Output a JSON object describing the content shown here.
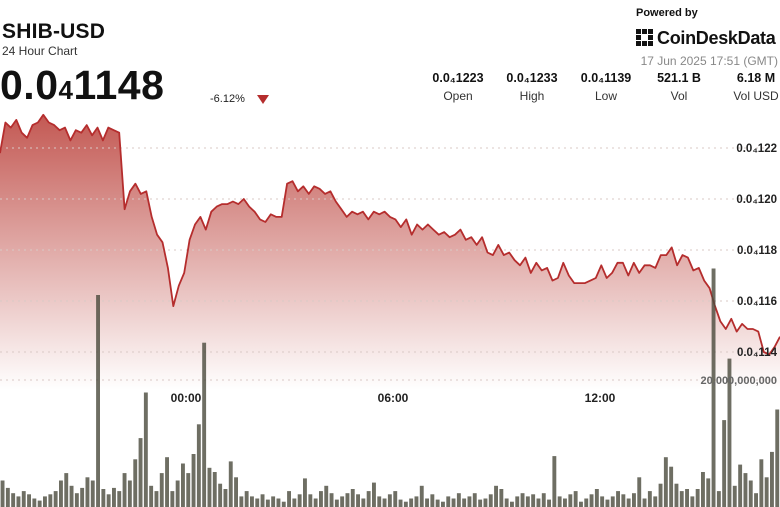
{
  "header": {
    "pair": "SHIB-USD",
    "period": "24 Hour Chart",
    "price_main": "0.0",
    "price_sub": "4",
    "price_tail": "1148",
    "change": "-6.12%",
    "change_direction": "down"
  },
  "branding": {
    "powered_by": "Powered by",
    "name": "CoinDeskData",
    "timestamp": "17 Jun 2025 17:51 (GMT)"
  },
  "stats": [
    {
      "value": "0.0₄1223",
      "label": "Open"
    },
    {
      "value": "0.0₄1233",
      "label": "High"
    },
    {
      "value": "0.0₄1139",
      "label": "Low"
    },
    {
      "value": "521.1 B",
      "label": "Vol"
    },
    {
      "value": "6.18 M",
      "label": "Vol USD"
    }
  ],
  "colors": {
    "line": "#b52d2d",
    "area_top": "#c0504a",
    "volume_bar": "#4a4a3c",
    "down": "#b52d2d"
  },
  "chart_data": {
    "type": "area",
    "y_tick_labels": [
      "0.0₄122",
      "0.0₄120",
      "0.0₄118",
      "0.0₄116",
      "0.0₄114"
    ],
    "y_tick_values": [
      1.22e-05,
      1.2e-05,
      1.18e-05,
      1.16e-05,
      1.14e-05
    ],
    "x_tick_labels": [
      "00:00",
      "06:00",
      "12:00"
    ],
    "volume_tick_label": "20,000,000,000",
    "grid": true,
    "series": [
      {
        "values": [
          1.218e-05,
          1.23e-05,
          1.228e-05,
          1.231e-05,
          1.226e-05,
          1.224e-05,
          1.229e-05,
          1.23e-05,
          1.233e-05,
          1.23e-05,
          1.229e-05,
          1.227e-05,
          1.228e-05,
          1.223e-05,
          1.227e-05,
          1.226e-05,
          1.229e-05,
          1.225e-05,
          1.228e-05,
          1.223e-05,
          1.228e-05,
          1.227e-05,
          1.226e-05,
          1.196e-05,
          1.203e-05,
          1.206e-05,
          1.202e-05,
          1.203e-05,
          1.193e-05,
          1.186e-05,
          1.183e-05,
          1.173e-05,
          1.158e-05,
          1.166e-05,
          1.171e-05,
          1.184e-05,
          1.19e-05,
          1.193e-05,
          1.188e-05,
          1.195e-05,
          1.197e-05,
          1.198e-05,
          1.198e-05,
          1.199e-05,
          1.198e-05,
          1.2e-05,
          1.197e-05,
          1.195e-05,
          1.192e-05,
          1.191e-05,
          1.194e-05,
          1.193e-05,
          1.193e-05,
          1.206e-05,
          1.207e-05,
          1.203e-05,
          1.205e-05,
          1.202e-05,
          1.205e-05,
          1.204e-05,
          1.202e-05,
          1.203e-05,
          1.199e-05,
          1.196e-05,
          1.193e-05,
          1.195e-05,
          1.194e-05,
          1.195e-05,
          1.192e-05,
          1.195e-05,
          1.194e-05,
          1.195e-05,
          1.193e-05,
          1.192e-05,
          1.189e-05,
          1.192e-05,
          1.186e-05,
          1.19e-05,
          1.188e-05,
          1.19e-05,
          1.188e-05,
          1.186e-05,
          1.187e-05,
          1.185e-05,
          1.186e-05,
          1.188e-05,
          1.184e-05,
          1.185e-05,
          1.182e-05,
          1.185e-05,
          1.179e-05,
          1.178e-05,
          1.182e-05,
          1.178e-05,
          1.179e-05,
          1.176e-05,
          1.174e-05,
          1.177e-05,
          1.171e-05,
          1.175e-05,
          1.172e-05,
          1.173e-05,
          1.168e-05,
          1.169e-05,
          1.175e-05,
          1.17e-05,
          1.167e-05,
          1.167e-05,
          1.167e-05,
          1.168e-05,
          1.169e-05,
          1.174e-05,
          1.169e-05,
          1.171e-05,
          1.175e-05,
          1.175e-05,
          1.17e-05,
          1.175e-05,
          1.171e-05,
          1.174e-05,
          1.174e-05,
          1.173e-05,
          1.178e-05,
          1.178e-05,
          1.181e-05,
          1.174e-05,
          1.178e-05,
          1.177e-05,
          1.172e-05,
          1.173e-05,
          1.168e-05,
          1.165e-05,
          1.158e-05,
          1.152e-05,
          1.149e-05,
          1.153e-05,
          1.148e-05,
          1.151e-05,
          1.149e-05,
          1.149e-05,
          1.148e-05,
          1.14e-05,
          1.139e-05,
          1.142e-05,
          1.146e-05
        ]
      }
    ],
    "volume": {
      "values": [
        2.5,
        1.8,
        1.3,
        1.0,
        1.5,
        1.2,
        0.8,
        0.6,
        1.0,
        1.2,
        1.5,
        2.5,
        3.2,
        2.0,
        1.3,
        1.8,
        2.8,
        2.5,
        20.0,
        1.7,
        1.2,
        1.8,
        1.5,
        3.2,
        2.5,
        4.5,
        6.5,
        10.8,
        2.0,
        1.5,
        3.2,
        4.7,
        1.5,
        2.5,
        4.1,
        3.2,
        5.0,
        7.8,
        15.5,
        3.7,
        3.3,
        2.2,
        1.7,
        4.3,
        2.8,
        1.0,
        1.5,
        1.0,
        0.8,
        1.2,
        0.7,
        1.0,
        0.8,
        0.5,
        1.5,
        0.8,
        1.2,
        2.7,
        1.2,
        0.8,
        1.5,
        2.0,
        1.3,
        0.7,
        1.0,
        1.3,
        1.7,
        1.2,
        0.8,
        1.5,
        2.3,
        1.0,
        0.8,
        1.2,
        1.5,
        0.7,
        0.5,
        0.8,
        1.0,
        2.0,
        0.8,
        1.2,
        0.7,
        0.5,
        1.0,
        0.8,
        1.3,
        0.8,
        1.0,
        1.3,
        0.7,
        0.8,
        1.2,
        2.0,
        1.7,
        0.8,
        0.5,
        1.0,
        1.3,
        1.0,
        1.2,
        0.8,
        1.3,
        0.7,
        4.8,
        1.0,
        0.8,
        1.2,
        1.5,
        0.5,
        0.8,
        1.2,
        1.7,
        1.0,
        0.7,
        1.0,
        1.5,
        1.2,
        0.8,
        1.3,
        2.8,
        0.8,
        1.5,
        1.0,
        2.2,
        4.7,
        3.8,
        2.2,
        1.5,
        1.7,
        1.0,
        1.7,
        3.3,
        2.7,
        22.5,
        1.5,
        8.2,
        14.0,
        2.0,
        4.0,
        3.2,
        2.5,
        1.3,
        4.5,
        2.8,
        5.2,
        9.2
      ]
    }
  }
}
